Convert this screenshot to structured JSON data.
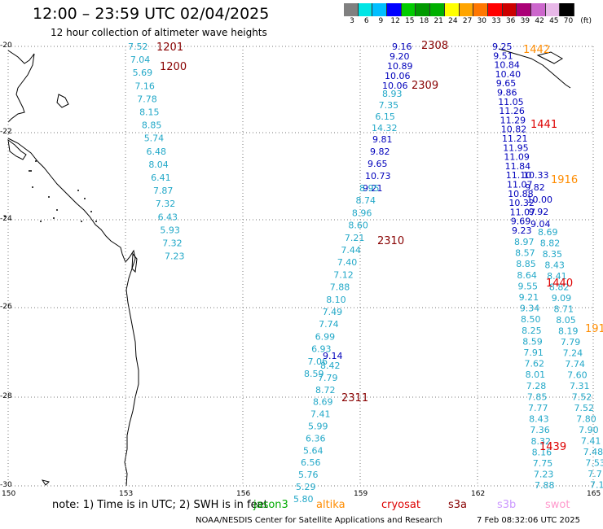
{
  "header": {
    "title": "12:00 – 23:59 UTC 02/04/2025",
    "subtitle": "12 hour collection of altimeter wave heights"
  },
  "colorbar": {
    "colors": [
      "#808080",
      "#00e5e5",
      "#00bfff",
      "#0000ff",
      "#00cc00",
      "#009900",
      "#00b000",
      "#ffff00",
      "#ffa500",
      "#ff7700",
      "#ff0000",
      "#cc0000",
      "#aa0077",
      "#cc66cc",
      "#e8b8e8",
      "#000000"
    ],
    "ticks": [
      "3",
      "6",
      "9",
      "12",
      "15",
      "18",
      "21",
      "24",
      "27",
      "30",
      "33",
      "36",
      "39",
      "42",
      "45",
      "70"
    ],
    "unit": "(ft)"
  },
  "axes": {
    "x_ticks": [
      "150",
      "153",
      "156",
      "159",
      "162",
      "165"
    ],
    "y_ticks": [
      "-20",
      "-22",
      "-24",
      "-26",
      "-28",
      "-30"
    ],
    "lon_range": [
      150,
      165
    ],
    "lat_range": [
      -30,
      -20
    ]
  },
  "passes": [
    {
      "id": "1201",
      "color": "#880000"
    },
    {
      "id": "1200",
      "color": "#880000"
    },
    {
      "id": "2308",
      "color": "#880000"
    },
    {
      "id": "2309",
      "color": "#880000"
    },
    {
      "id": "2310",
      "color": "#880000"
    },
    {
      "id": "2311",
      "color": "#880000"
    },
    {
      "id": "1442",
      "color": "#ff8c00"
    },
    {
      "id": "1441",
      "color": "#dd0000"
    },
    {
      "id": "1916",
      "color": "#ff8c00"
    },
    {
      "id": "1440",
      "color": "#dd0000"
    },
    {
      "id": "191",
      "color": "#ff8c00"
    },
    {
      "id": "1439",
      "color": "#dd0000"
    }
  ],
  "tracks": [
    {
      "name": "track-1200",
      "color": "#22a8c8",
      "values": [
        "7.52",
        "7.04",
        "5.69",
        "7.16",
        "7.78",
        "8.15",
        "8.85",
        "5.74",
        "6.48",
        "8.04",
        "6.41",
        "7.87",
        "7.32",
        "6.43",
        "5.93",
        "7.32",
        "7.23"
      ]
    },
    {
      "name": "track-2308-top",
      "color": "#0000bb",
      "values": [
        "9.16",
        "9.20",
        "10.89",
        "10.06",
        "10.06"
      ]
    },
    {
      "name": "track-2309",
      "color": "#22a8c8",
      "values": [
        "8.93",
        "7.35",
        "6.15",
        "14.32"
      ]
    },
    {
      "name": "track-2309-blue",
      "color": "#0000bb",
      "values": [
        "9.81",
        "9.82",
        "9.65",
        "10.73",
        "9.21"
      ]
    },
    {
      "name": "track-2310",
      "color": "#22a8c8",
      "values": [
        "8.95",
        "8.74",
        "8.96",
        "8.60",
        "7.21",
        "7.44",
        "7.40",
        "7.12",
        "7.88",
        "8.10",
        "7.49",
        "7.74",
        "6.99",
        "6.93",
        "7.06",
        "8.59"
      ]
    },
    {
      "name": "track-2311-blue",
      "color": "#0000bb",
      "values": [
        "9.14"
      ]
    },
    {
      "name": "track-2311",
      "color": "#22a8c8",
      "values": [
        "8.42",
        "7.79",
        "8.72",
        "8.69",
        "7.41",
        "5.99",
        "6.36",
        "5.64",
        "6.56",
        "5.76",
        "5.29",
        "5.80"
      ]
    },
    {
      "name": "track-1442-blue",
      "color": "#0000bb",
      "values": [
        "9.25",
        "9.51",
        "10.84",
        "10.40",
        "9.65",
        "9.86",
        "11.05",
        "11.26",
        "11.29",
        "10.82",
        "11.21",
        "11.95",
        "11.09",
        "11.84",
        "11.10",
        "11.07",
        "10.88",
        "10.32",
        "11.07",
        "9.69",
        "9.23"
      ]
    },
    {
      "name": "track-1442-cyan",
      "color": "#22a8c8",
      "values": [
        "8.97",
        "8.57",
        "8.85",
        "8.64",
        "9.55",
        "9.21",
        "9.34",
        "8.50",
        "8.25",
        "8.59",
        "7.91",
        "7.62",
        "8.01",
        "7.28",
        "7.85",
        "7.77",
        "8.43",
        "7.36",
        "8.32",
        "8.16",
        "7.75",
        "7.23",
        "7.88"
      ]
    },
    {
      "name": "track-1916-blue",
      "color": "#0000bb",
      "values": [
        "10.33",
        "9.82",
        "10.00",
        "9.92",
        "9.04"
      ]
    },
    {
      "name": "track-1916-cyan",
      "color": "#22a8c8",
      "values": [
        "8.69",
        "8.82",
        "8.35",
        "8.43",
        "8.41",
        "8.82",
        "9.09",
        "8.71",
        "8.05",
        "8.19",
        "7.79",
        "7.24",
        "7.74",
        "7.60",
        "7.31",
        "7.52",
        "7.52",
        "7.80",
        "7.90",
        "7.41",
        "7.48",
        "7.53",
        "7.7",
        "7.1"
      ]
    }
  ],
  "footer": {
    "note": "note:  1) Time is in UTC; 2) SWH is in feet",
    "satellites": [
      {
        "name": "jason3",
        "color": "#00aa00"
      },
      {
        "name": "altika",
        "color": "#ff8c00"
      },
      {
        "name": "cryosat",
        "color": "#dd0000"
      },
      {
        "name": "s3a",
        "color": "#880000"
      },
      {
        "name": "s3b",
        "color": "#cc99ff"
      },
      {
        "name": "swot",
        "color": "#ff99cc"
      }
    ],
    "credit": "NOAA/NESDIS Center for Satellite Applications and Research",
    "timestamp": "7 Feb 08:32:06 UTC 2025"
  }
}
